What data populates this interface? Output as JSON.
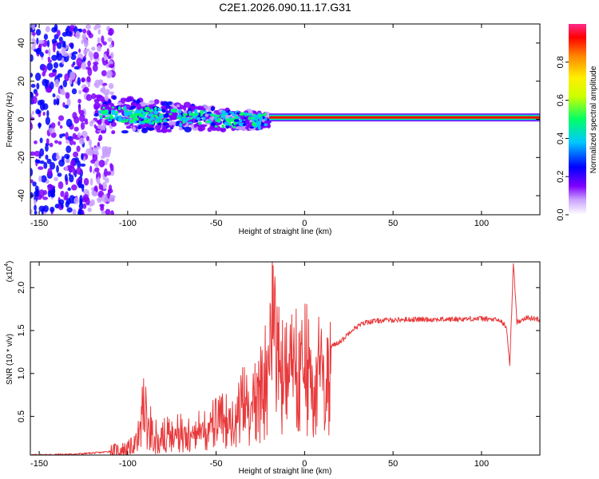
{
  "title": "C2E1.2026.090.11.17.G31",
  "chart_data": [
    {
      "type": "heatmap",
      "xlabel": "Height of straight line (km)",
      "ylabel": "Frequency (Hz)",
      "xlim": [
        -155,
        133
      ],
      "ylim": [
        -50,
        50
      ],
      "xticks": [
        -150,
        -100,
        -50,
        0,
        50,
        100
      ],
      "yticks": [
        -40,
        -20,
        0,
        20,
        40
      ],
      "colorbar": {
        "label": "Normalized spectral amplitude",
        "range": [
          0,
          1
        ],
        "ticks": [
          0.0,
          0.2,
          0.4,
          0.6,
          0.8
        ],
        "tick_labels": [
          "0.0",
          "0.2",
          "0.4",
          "0.6",
          "0.8"
        ],
        "colors": [
          "#ffffff",
          "#7f00ff",
          "#0000ff",
          "#00c8ff",
          "#00ff66",
          "#ccff00",
          "#ffee00",
          "#ff8800",
          "#ff0000",
          "#ff2a8a"
        ]
      },
      "regions": [
        {
          "name": "broadband-noise",
          "x": [
            -155,
            -108
          ],
          "y": [
            -50,
            50
          ],
          "level": 0.3
        },
        {
          "name": "turbulent-band",
          "x": [
            -118,
            -20
          ],
          "y": [
            -12,
            12
          ],
          "level": 0.45
        },
        {
          "name": "stable-tone",
          "x": [
            -20,
            133
          ],
          "y": [
            -1,
            3
          ],
          "level": 0.95
        }
      ]
    },
    {
      "type": "line",
      "xlabel": "Height of straight line (km)",
      "ylabel": "SNR (10 * v/v)",
      "y_multiplier": "(x10",
      "y_exponent": "4",
      "xlim": [
        -155,
        133
      ],
      "ylim": [
        0.05,
        2.3
      ],
      "xticks": [
        -150,
        -100,
        -50,
        0,
        50,
        100
      ],
      "yticks": [
        0.5,
        1.0,
        1.5,
        2.0
      ],
      "ytick_labels": [
        "0.5",
        "1.0",
        "1.5",
        "2.0"
      ],
      "color": "#e8393b",
      "series": [
        {
          "name": "SNR",
          "x": [
            -155,
            -130,
            -115,
            -108,
            -100,
            -95,
            -91,
            -85,
            -75,
            -65,
            -55,
            -45,
            -38,
            -33,
            -30,
            -26,
            -22,
            -18,
            -16,
            -14,
            -10,
            -6,
            -2,
            2,
            6,
            10,
            14,
            18,
            22,
            26,
            30,
            35,
            45,
            60,
            80,
            100,
            110,
            114,
            116,
            118,
            120,
            125,
            133
          ],
          "y": [
            0.05,
            0.06,
            0.08,
            0.1,
            0.12,
            0.2,
            0.68,
            0.3,
            0.35,
            0.4,
            0.45,
            0.55,
            0.6,
            0.9,
            0.7,
            0.9,
            1.2,
            1.86,
            2.1,
            1.2,
            1.2,
            1.3,
            1.35,
            1.3,
            1.2,
            1.25,
            1.3,
            1.35,
            1.4,
            1.5,
            1.55,
            1.6,
            1.62,
            1.63,
            1.63,
            1.64,
            1.62,
            1.55,
            1.1,
            2.3,
            1.6,
            1.65,
            1.63
          ]
        }
      ]
    }
  ]
}
